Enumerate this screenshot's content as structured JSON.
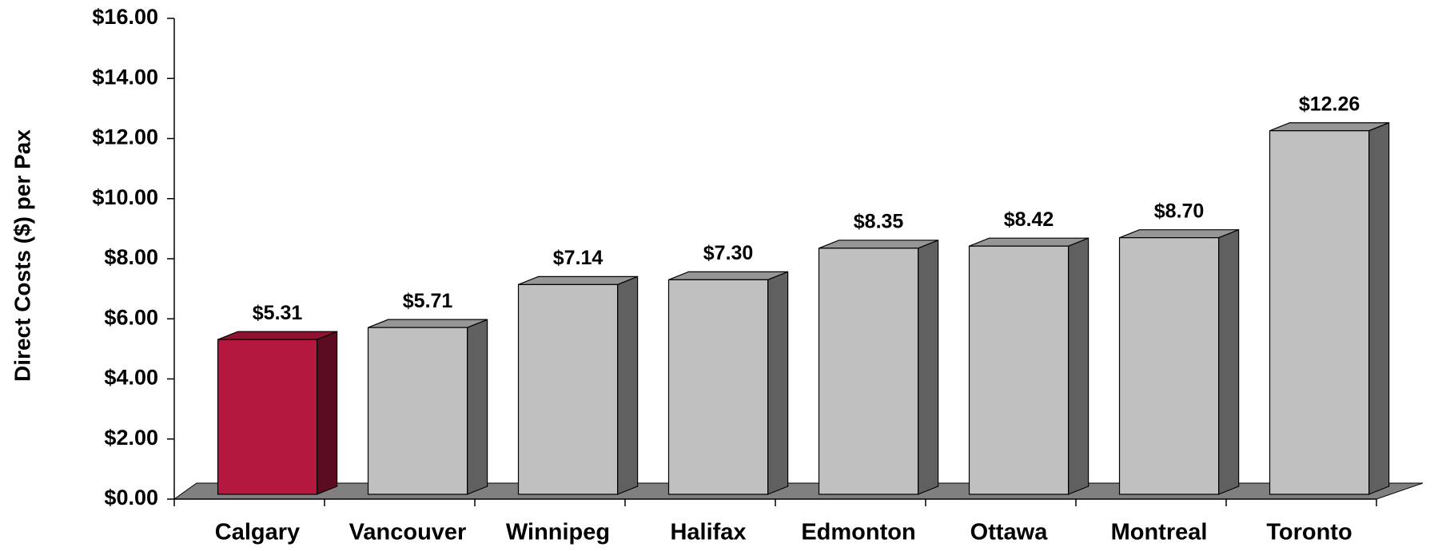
{
  "chart_data": {
    "type": "bar3d",
    "y_label": "Direct Costs ($) per Pax",
    "categories": [
      "Calgary",
      "Vancouver",
      "Winnipeg",
      "Halifax",
      "Edmonton",
      "Ottawa",
      "Montreal",
      "Toronto"
    ],
    "values": [
      5.31,
      5.71,
      7.14,
      7.3,
      8.35,
      8.42,
      8.7,
      12.26
    ],
    "value_labels": [
      "$5.31",
      "$5.71",
      "$7.14",
      "$7.30",
      "$8.35",
      "$8.42",
      "$8.70",
      "$12.26"
    ],
    "colors": [
      "#b5183f",
      "#c0c0c0",
      "#c0c0c0",
      "#c0c0c0",
      "#c0c0c0",
      "#c0c0c0",
      "#c0c0c0",
      "#c0c0c0"
    ],
    "ylim": [
      0,
      16
    ],
    "yticks": [
      {
        "value": 0,
        "label": "$0.00"
      },
      {
        "value": 2,
        "label": "$2.00"
      },
      {
        "value": 4,
        "label": "$4.00"
      },
      {
        "value": 6,
        "label": "$6.00"
      },
      {
        "value": 8,
        "label": "$8.00"
      },
      {
        "value": 10,
        "label": "$10.00"
      },
      {
        "value": 12,
        "label": "$12.00"
      },
      {
        "value": 14,
        "label": "$14.00"
      },
      {
        "value": 16,
        "label": "$16.00"
      }
    ]
  }
}
